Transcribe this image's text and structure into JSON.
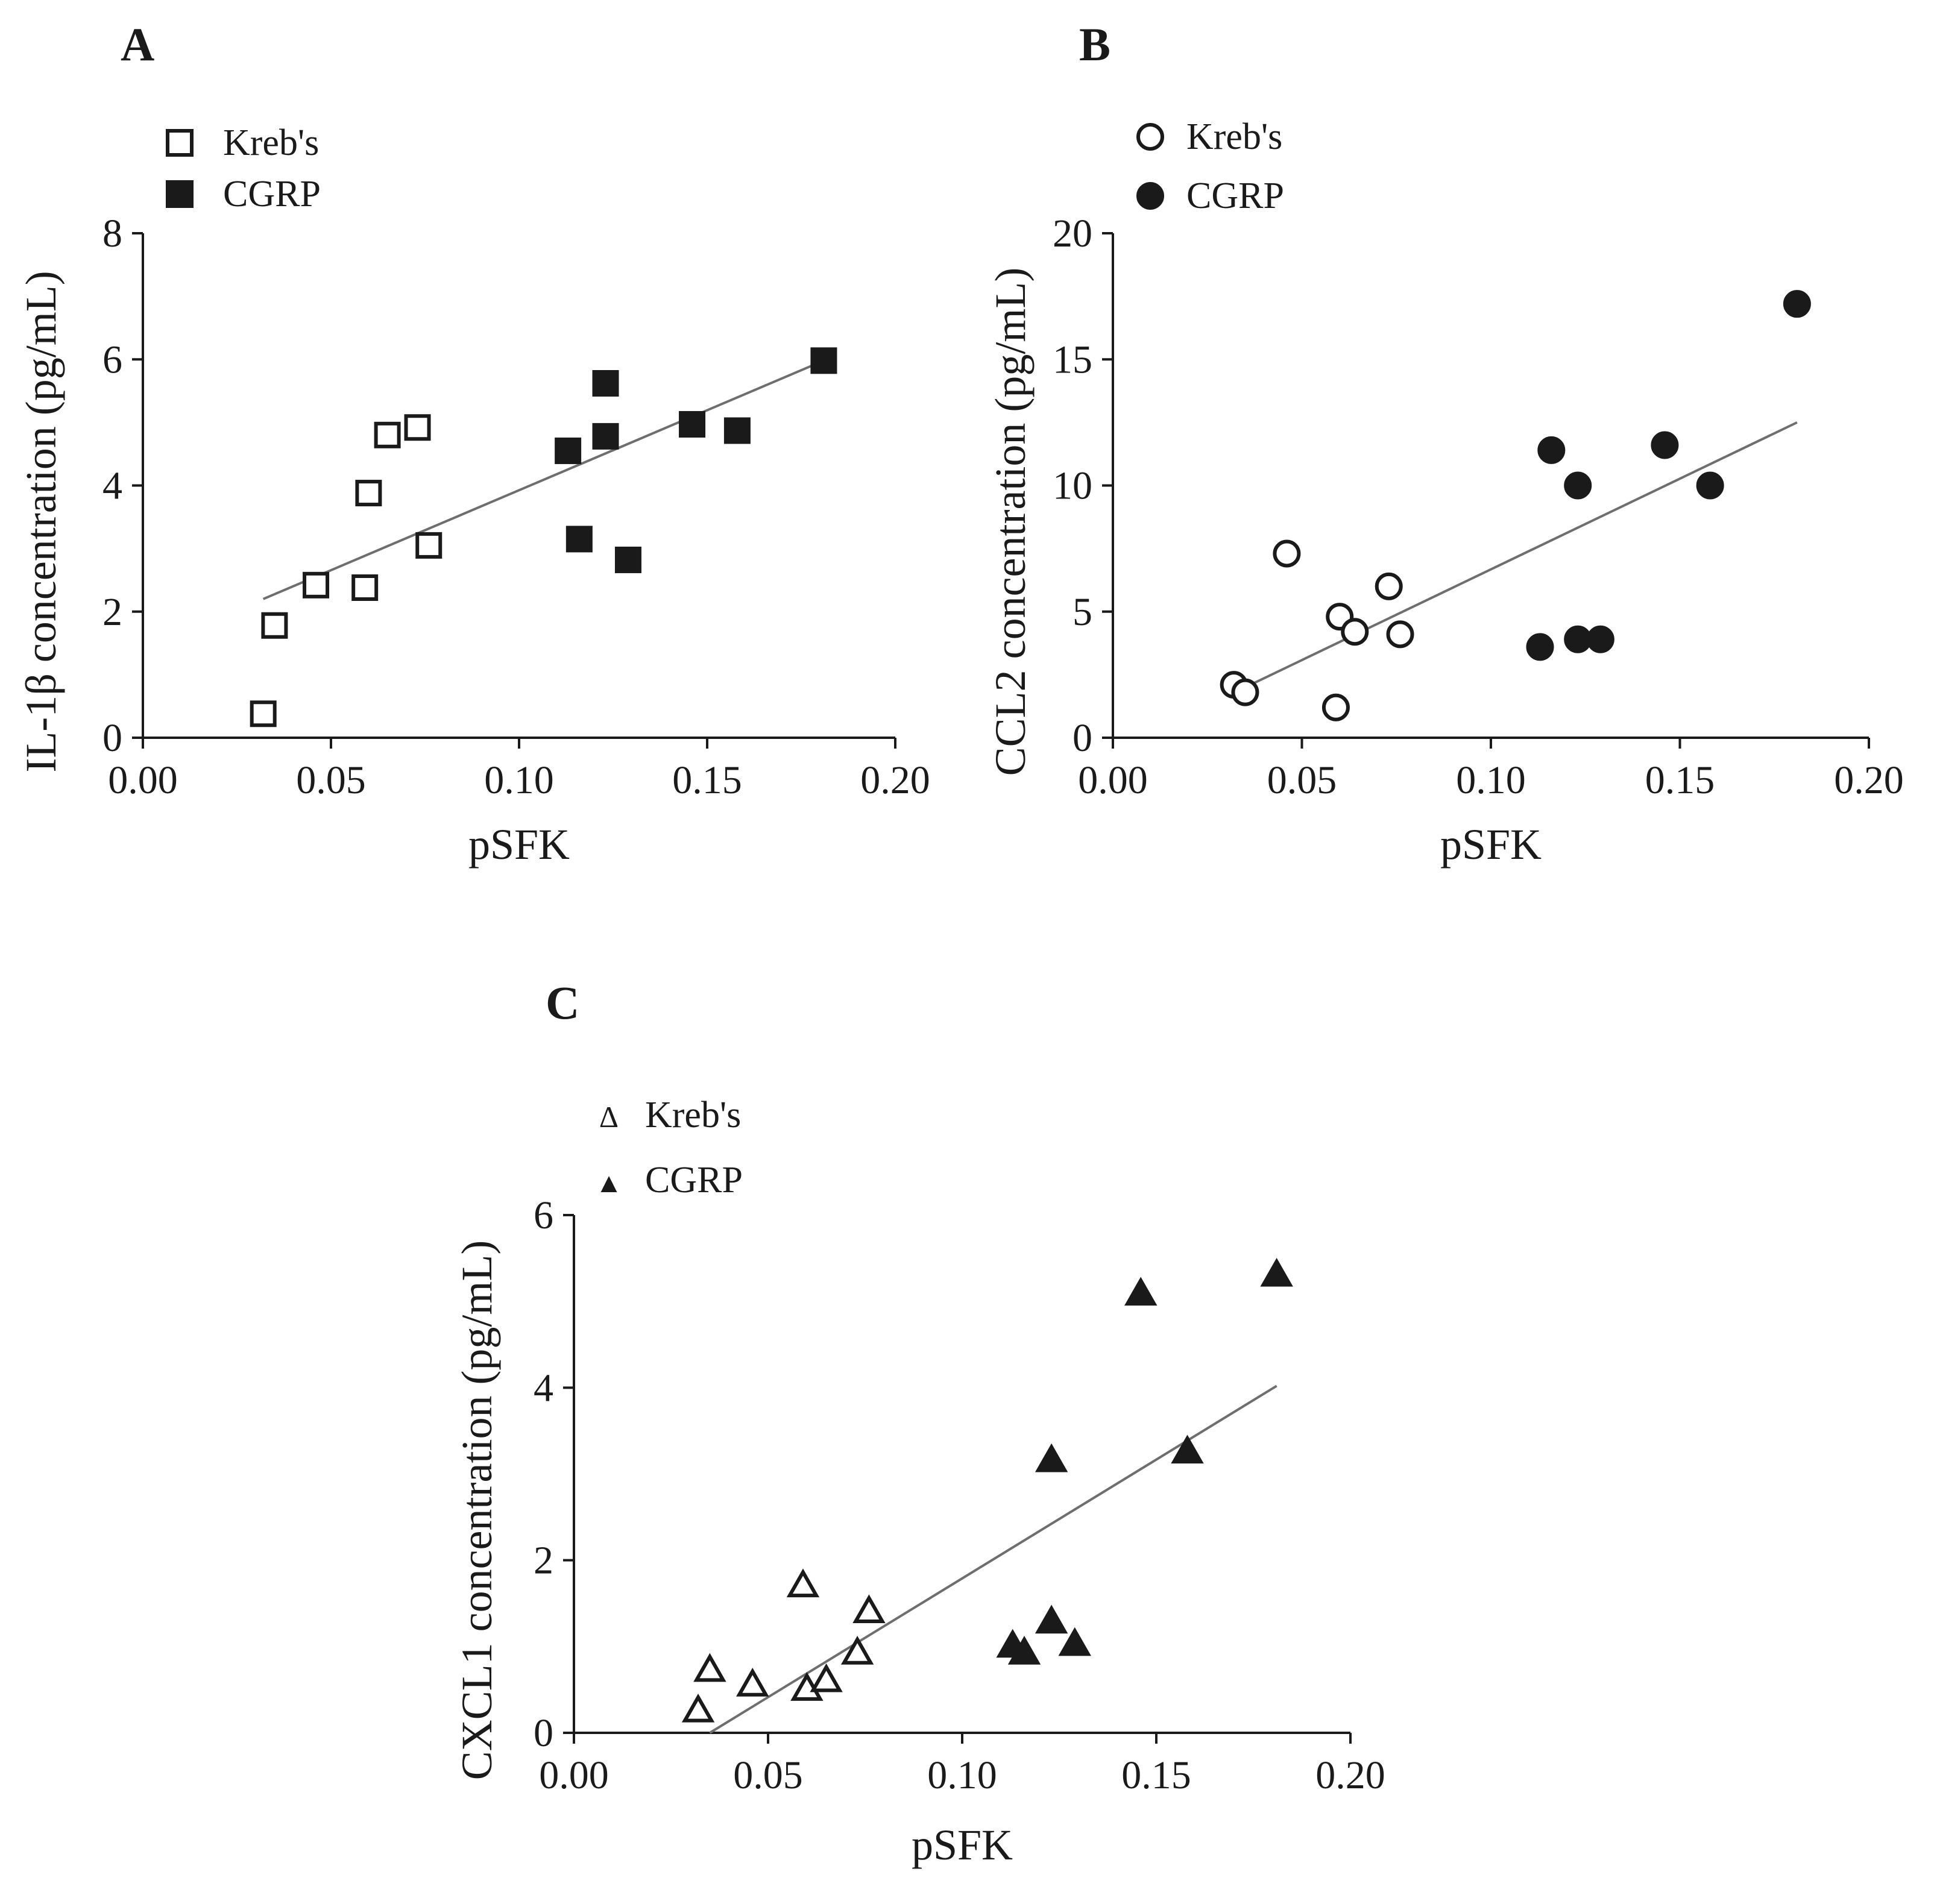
{
  "figure": {
    "colors": {
      "axis": "#1a1a1a",
      "marker": "#1a1a1a",
      "fit_line": "#6e6e6e",
      "background": "#ffffff"
    }
  },
  "chart_data": [
    {
      "id": "A",
      "panel_label": "A",
      "type": "scatter",
      "marker": "square",
      "xlabel": "pSFK",
      "ylabel": "IL-1β concentration (pg/mL)",
      "xlim": [
        0,
        0.2
      ],
      "ylim": [
        0,
        8
      ],
      "x_ticks": [
        0,
        0.05,
        0.1,
        0.15,
        0.2
      ],
      "x_tick_labels": [
        "0.00",
        "0.05",
        "0.10",
        "0.15",
        "0.20"
      ],
      "y_ticks": [
        0,
        2,
        4,
        6,
        8
      ],
      "y_tick_labels": [
        "0",
        "2",
        "4",
        "6",
        "8"
      ],
      "legend": [
        "Kreb's",
        "CGRP"
      ],
      "series": [
        {
          "name": "Kreb's",
          "filled": false,
          "points": [
            [
              0.032,
              0.38
            ],
            [
              0.035,
              1.78
            ],
            [
              0.046,
              2.42
            ],
            [
              0.059,
              2.38
            ],
            [
              0.06,
              3.88
            ],
            [
              0.065,
              4.8
            ],
            [
              0.073,
              4.92
            ],
            [
              0.076,
              3.05
            ]
          ]
        },
        {
          "name": "CGRP",
          "filled": true,
          "points": [
            [
              0.113,
              4.55
            ],
            [
              0.116,
              3.15
            ],
            [
              0.123,
              4.78
            ],
            [
              0.123,
              5.62
            ],
            [
              0.129,
              2.82
            ],
            [
              0.146,
              4.97
            ],
            [
              0.158,
              4.87
            ],
            [
              0.181,
              5.98
            ]
          ]
        }
      ],
      "fit_line": [
        [
          0.032,
          2.2
        ],
        [
          0.181,
          5.98
        ]
      ]
    },
    {
      "id": "B",
      "panel_label": "B",
      "type": "scatter",
      "marker": "circle",
      "xlabel": "pSFK",
      "ylabel": "CCL2 concentration (pg/mL)",
      "xlim": [
        0,
        0.2
      ],
      "ylim": [
        0,
        20
      ],
      "x_ticks": [
        0,
        0.05,
        0.1,
        0.15,
        0.2
      ],
      "x_tick_labels": [
        "0.00",
        "0.05",
        "0.10",
        "0.15",
        "0.20"
      ],
      "y_ticks": [
        0,
        5,
        10,
        15,
        20
      ],
      "y_tick_labels": [
        "0",
        "5",
        "10",
        "15",
        "20"
      ],
      "legend": [
        "Kreb's",
        "CGRP"
      ],
      "series": [
        {
          "name": "Kreb's",
          "filled": false,
          "points": [
            [
              0.032,
              2.1
            ],
            [
              0.035,
              1.8
            ],
            [
              0.046,
              7.3
            ],
            [
              0.059,
              1.2
            ],
            [
              0.06,
              4.8
            ],
            [
              0.064,
              4.2
            ],
            [
              0.073,
              6.0
            ],
            [
              0.076,
              4.1
            ]
          ]
        },
        {
          "name": "CGRP",
          "filled": true,
          "points": [
            [
              0.113,
              3.6
            ],
            [
              0.116,
              11.4
            ],
            [
              0.123,
              10.0
            ],
            [
              0.123,
              3.9
            ],
            [
              0.129,
              3.9
            ],
            [
              0.146,
              11.6
            ],
            [
              0.158,
              10.0
            ],
            [
              0.181,
              17.2
            ]
          ]
        }
      ],
      "fit_line": [
        [
          0.035,
          2.0
        ],
        [
          0.181,
          12.5
        ]
      ]
    },
    {
      "id": "C",
      "panel_label": "C",
      "type": "scatter",
      "marker": "triangle",
      "xlabel": "pSFK",
      "ylabel": "CXCL1 concentration (pg/mL)",
      "xlim": [
        0,
        0.2
      ],
      "ylim": [
        0,
        6
      ],
      "x_ticks": [
        0,
        0.05,
        0.1,
        0.15,
        0.2
      ],
      "x_tick_labels": [
        "0.00",
        "0.05",
        "0.10",
        "0.15",
        "0.20"
      ],
      "y_ticks": [
        0,
        2,
        4,
        6
      ],
      "y_tick_labels": [
        "0",
        "2",
        "4",
        "6"
      ],
      "legend": [
        "Kreb's",
        "CGRP"
      ],
      "legend_glyphs": [
        "Δ",
        "▲"
      ],
      "series": [
        {
          "name": "Kreb's",
          "filled": false,
          "points": [
            [
              0.032,
              0.25
            ],
            [
              0.035,
              0.72
            ],
            [
              0.046,
              0.55
            ],
            [
              0.059,
              1.7
            ],
            [
              0.06,
              0.5
            ],
            [
              0.065,
              0.6
            ],
            [
              0.073,
              0.92
            ],
            [
              0.076,
              1.4
            ]
          ]
        },
        {
          "name": "CGRP",
          "filled": true,
          "points": [
            [
              0.113,
              1.0
            ],
            [
              0.116,
              0.92
            ],
            [
              0.123,
              1.28
            ],
            [
              0.123,
              3.15
            ],
            [
              0.129,
              1.02
            ],
            [
              0.146,
              5.08
            ],
            [
              0.158,
              3.25
            ],
            [
              0.181,
              5.3
            ]
          ]
        }
      ],
      "fit_line": [
        [
          0.035,
          0.0
        ],
        [
          0.181,
          4.02
        ]
      ]
    }
  ]
}
